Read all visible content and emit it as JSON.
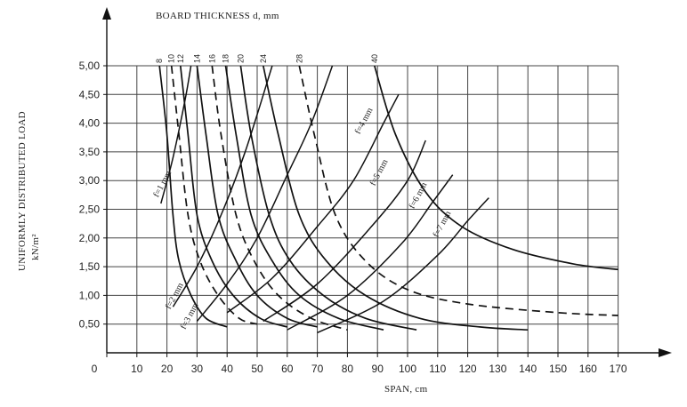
{
  "chart_data": {
    "type": "line",
    "title": "BOARD THICKNESS d, mm",
    "xlabel": "SPAN, cm",
    "ylabel": "UNIFORMLY DISTRIBUTED LOAD",
    "ylabel_unit": "kN/m²",
    "xlim": [
      0,
      175
    ],
    "ylim": [
      0,
      5.0
    ],
    "x_ticks": [
      "0",
      "10",
      "20",
      "30",
      "40",
      "50",
      "60",
      "70",
      "80",
      "90",
      "100",
      "110",
      "120",
      "130",
      "140",
      "150",
      "160",
      "170"
    ],
    "y_ticks": [
      "0,50",
      "1,00",
      "1,50",
      "2,00",
      "2,50",
      "3,00",
      "3,50",
      "4,00",
      "4,50",
      "5,00"
    ],
    "grid": true,
    "thickness_ticks": [
      {
        "label": "8",
        "x": 17.5
      },
      {
        "label": "10",
        "x": 21.5
      },
      {
        "label": "12",
        "x": 24.5
      },
      {
        "label": "14",
        "x": 30
      },
      {
        "label": "16",
        "x": 35
      },
      {
        "label": "18",
        "x": 39.5
      },
      {
        "label": "20",
        "x": 44.5
      },
      {
        "label": "24",
        "x": 52
      },
      {
        "label": "28",
        "x": 64
      },
      {
        "label": "40",
        "x": 89
      }
    ],
    "strength_curves": [
      {
        "thickness": "8",
        "style": "solid",
        "points": [
          [
            17.5,
            5.0
          ],
          [
            20,
            3.8
          ],
          [
            22,
            2.4
          ],
          [
            24,
            1.6
          ],
          [
            28,
            1.0
          ],
          [
            33,
            0.6
          ],
          [
            40,
            0.45
          ]
        ]
      },
      {
        "thickness": "10",
        "style": "dashed",
        "points": [
          [
            21.5,
            5.0
          ],
          [
            24,
            3.8
          ],
          [
            27,
            2.4
          ],
          [
            31,
            1.6
          ],
          [
            37,
            1.0
          ],
          [
            44,
            0.6
          ],
          [
            50,
            0.5
          ]
        ]
      },
      {
        "thickness": "12",
        "style": "solid",
        "points": [
          [
            24.5,
            5.0
          ],
          [
            27,
            3.8
          ],
          [
            30,
            2.4
          ],
          [
            35,
            1.6
          ],
          [
            42,
            1.0
          ],
          [
            51,
            0.6
          ],
          [
            60,
            0.45
          ]
        ]
      },
      {
        "thickness": "14",
        "style": "solid",
        "points": [
          [
            30,
            5.0
          ],
          [
            33,
            3.8
          ],
          [
            37,
            2.4
          ],
          [
            43,
            1.6
          ],
          [
            50,
            1.0
          ],
          [
            60,
            0.6
          ],
          [
            70,
            0.45
          ]
        ]
      },
      {
        "thickness": "16",
        "style": "dashed",
        "points": [
          [
            35,
            5.0
          ],
          [
            38,
            3.8
          ],
          [
            43,
            2.4
          ],
          [
            49,
            1.6
          ],
          [
            57,
            1.0
          ],
          [
            68,
            0.6
          ],
          [
            80,
            0.4
          ]
        ]
      },
      {
        "thickness": "18",
        "style": "solid",
        "points": [
          [
            39.5,
            5.0
          ],
          [
            43,
            3.8
          ],
          [
            48,
            2.4
          ],
          [
            55,
            1.6
          ],
          [
            64,
            1.0
          ],
          [
            77,
            0.6
          ],
          [
            92,
            0.4
          ]
        ]
      },
      {
        "thickness": "20",
        "style": "solid",
        "points": [
          [
            44.5,
            5.0
          ],
          [
            48,
            3.8
          ],
          [
            54,
            2.4
          ],
          [
            61,
            1.6
          ],
          [
            72,
            1.0
          ],
          [
            86,
            0.6
          ],
          [
            103,
            0.4
          ]
        ]
      },
      {
        "thickness": "24",
        "style": "solid",
        "points": [
          [
            52,
            5.0
          ],
          [
            57,
            3.8
          ],
          [
            64,
            2.4
          ],
          [
            73,
            1.6
          ],
          [
            86,
            1.0
          ],
          [
            104,
            0.6
          ],
          [
            124,
            0.45
          ],
          [
            140,
            0.4
          ]
        ]
      },
      {
        "thickness": "28",
        "style": "dashed",
        "points": [
          [
            64,
            5.0
          ],
          [
            69,
            3.8
          ],
          [
            76,
            2.4
          ],
          [
            86,
            1.6
          ],
          [
            100,
            1.1
          ],
          [
            120,
            0.85
          ],
          [
            150,
            0.7
          ],
          [
            170,
            0.65
          ]
        ]
      },
      {
        "thickness": "40",
        "style": "solid",
        "points": [
          [
            89,
            5.0
          ],
          [
            96,
            3.8
          ],
          [
            106,
            2.8
          ],
          [
            118,
            2.2
          ],
          [
            135,
            1.8
          ],
          [
            155,
            1.55
          ],
          [
            170,
            1.45
          ]
        ]
      }
    ],
    "deflection_curves": [
      {
        "label": "f=1 mm",
        "points": [
          [
            18,
            2.6
          ],
          [
            22,
            3.4
          ],
          [
            26,
            4.4
          ],
          [
            28,
            5.0
          ]
        ]
      },
      {
        "label": "f=2 mm",
        "points": [
          [
            22,
            0.8
          ],
          [
            30,
            1.5
          ],
          [
            38,
            2.4
          ],
          [
            46,
            3.5
          ],
          [
            55,
            5.0
          ]
        ]
      },
      {
        "label": "f=3 mm",
        "points": [
          [
            30,
            0.55
          ],
          [
            40,
            1.2
          ],
          [
            50,
            2.0
          ],
          [
            60,
            3.1
          ],
          [
            68,
            4.0
          ],
          [
            75,
            5.0
          ]
        ]
      },
      {
        "label": "f=4 mm",
        "points": [
          [
            40,
            0.7
          ],
          [
            55,
            1.3
          ],
          [
            70,
            2.2
          ],
          [
            82,
            3.0
          ],
          [
            92,
            4.0
          ],
          [
            97,
            4.5
          ]
        ]
      },
      {
        "label": "f=5 mm",
        "points": [
          [
            52,
            0.55
          ],
          [
            70,
            1.2
          ],
          [
            88,
            2.2
          ],
          [
            100,
            3.0
          ],
          [
            106,
            3.7
          ]
        ]
      },
      {
        "label": "f=6 mm",
        "points": [
          [
            60,
            0.4
          ],
          [
            80,
            1.0
          ],
          [
            98,
            1.9
          ],
          [
            108,
            2.6
          ],
          [
            115,
            3.1
          ]
        ]
      },
      {
        "label": "f=7 mm",
        "points": [
          [
            70,
            0.35
          ],
          [
            92,
            0.9
          ],
          [
            110,
            1.7
          ],
          [
            120,
            2.3
          ],
          [
            127,
            2.7
          ]
        ]
      }
    ],
    "deflection_labels": [
      {
        "text": "f=1 mm",
        "x": 17,
        "y": 2.7
      },
      {
        "text": "f=2 mm",
        "x": 21,
        "y": 0.75
      },
      {
        "text": "f=3 mm",
        "x": 26,
        "y": 0.4
      },
      {
        "text": "f=4 mm",
        "x": 84,
        "y": 3.8
      },
      {
        "text": "f=5 mm",
        "x": 89,
        "y": 2.9
      },
      {
        "text": "f=6 mm",
        "x": 102,
        "y": 2.5
      },
      {
        "text": "f=7 mm",
        "x": 110,
        "y": 2.0
      }
    ]
  },
  "colors": {
    "ink": "#111111",
    "grid": "#444444",
    "background": "#ffffff"
  }
}
